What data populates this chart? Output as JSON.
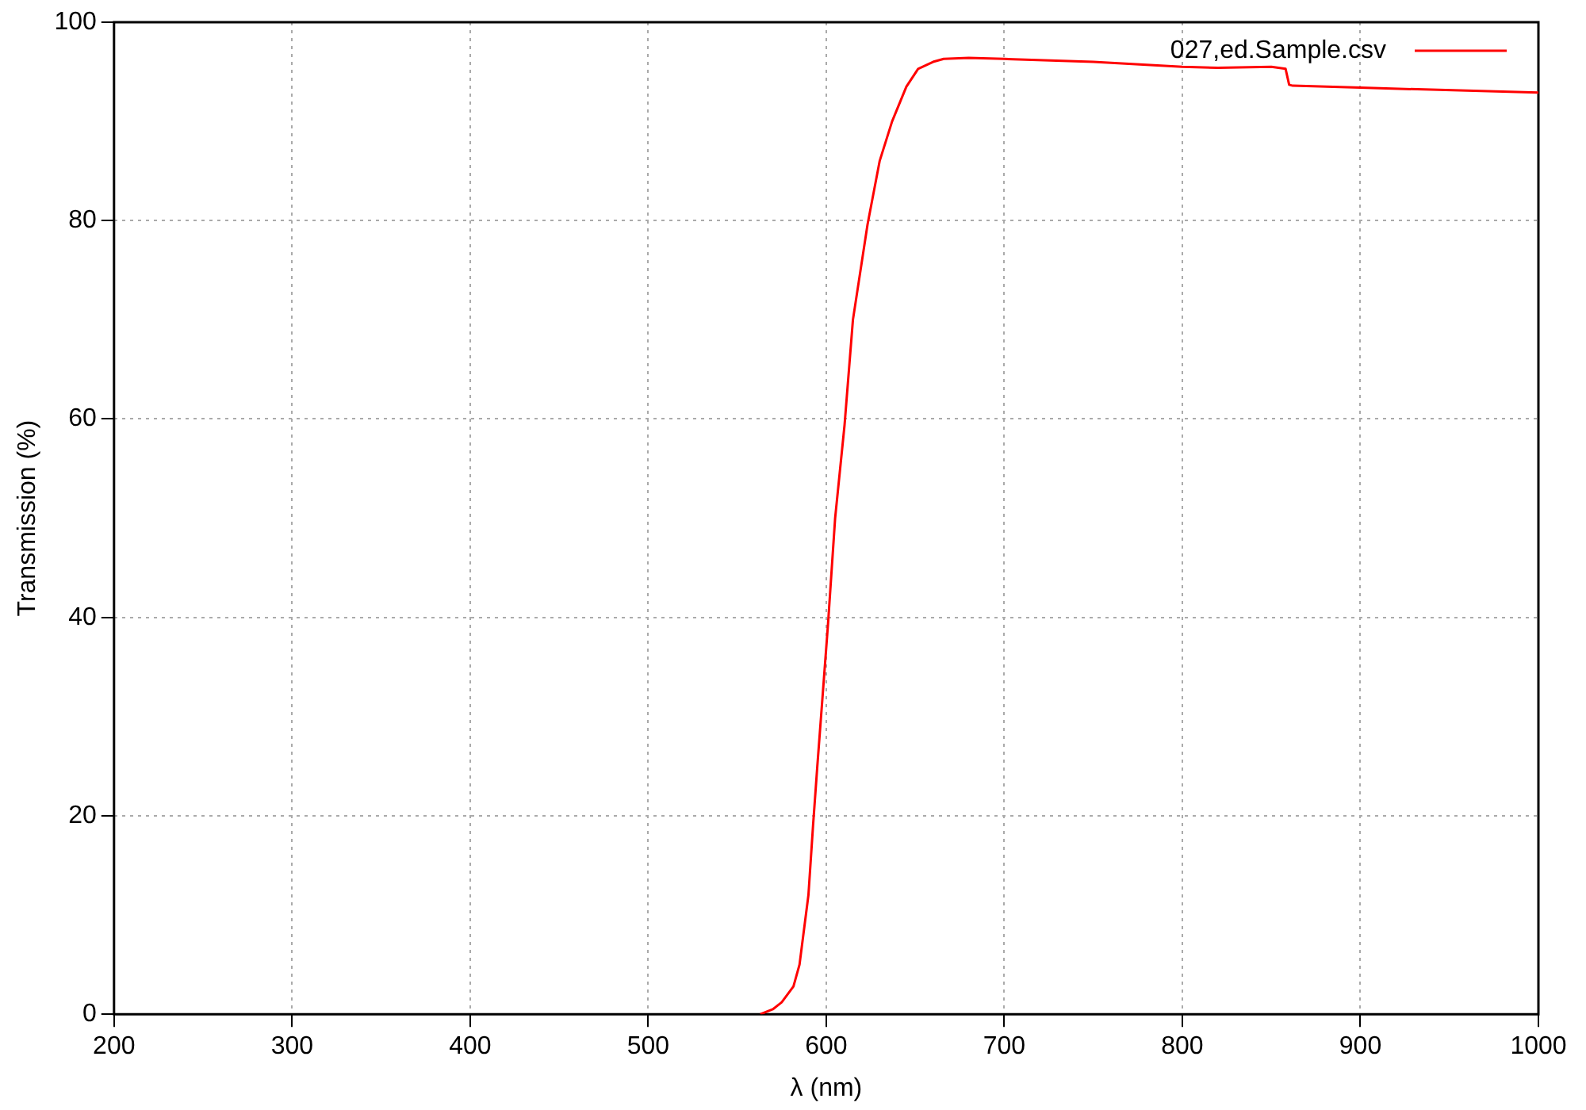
{
  "chart_data": {
    "type": "line",
    "xlabel": "λ (nm)",
    "ylabel": "Transmission (%)",
    "xlim": [
      200,
      1000
    ],
    "xticks": [
      200,
      300,
      400,
      500,
      600,
      700,
      800,
      900,
      1000
    ],
    "ylim": [
      0,
      100
    ],
    "yticks": [
      0,
      20,
      40,
      60,
      80,
      100
    ],
    "grid": true,
    "legend": "top right",
    "marker": "none",
    "line_style": "solid",
    "series": [
      {
        "name": "027,ed.Sample.csv",
        "color": "#ff0000",
        "x": [
          563,
          570,
          575,
          581.6,
          585,
          590,
          592.6,
          595,
          601,
          605,
          610.3,
          615,
          623.2,
          630,
          637,
          645,
          651.6,
          660,
          666,
          680,
          700,
          750,
          800,
          820,
          850,
          858,
          860,
          862,
          900,
          1000
        ],
        "values": [
          0,
          0.5,
          1.2,
          2.8,
          5,
          12,
          19,
          25,
          39.3,
          50,
          59.4,
          70,
          79.6,
          86,
          90,
          93.5,
          95.3,
          96,
          96.3,
          96.4,
          96.3,
          96,
          95.5,
          95.4,
          95.5,
          95.3,
          93.7,
          93.6,
          93.4,
          92.9
        ]
      }
    ]
  }
}
